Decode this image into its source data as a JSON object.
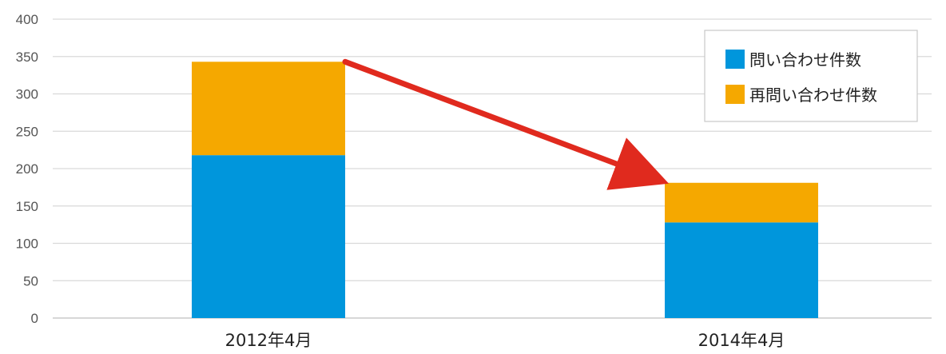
{
  "chart_data": {
    "type": "bar",
    "stacked": true,
    "categories": [
      "2012年4月",
      "2014年4月"
    ],
    "series": [
      {
        "name": "問い合わせ件数",
        "color": "#0096dc",
        "values": [
          218,
          128
        ]
      },
      {
        "name": "再問い合わせ件数",
        "color": "#f5a800",
        "values": [
          125,
          53
        ]
      }
    ],
    "ylim": [
      0,
      400
    ],
    "yticks": [
      0,
      50,
      100,
      150,
      200,
      250,
      300,
      350,
      400
    ],
    "grid": true,
    "legend_position": "top-right",
    "annotation": {
      "type": "arrow",
      "color": "#e02a1e",
      "from_category": "2012年4月",
      "to_category": "2014年4月"
    }
  }
}
